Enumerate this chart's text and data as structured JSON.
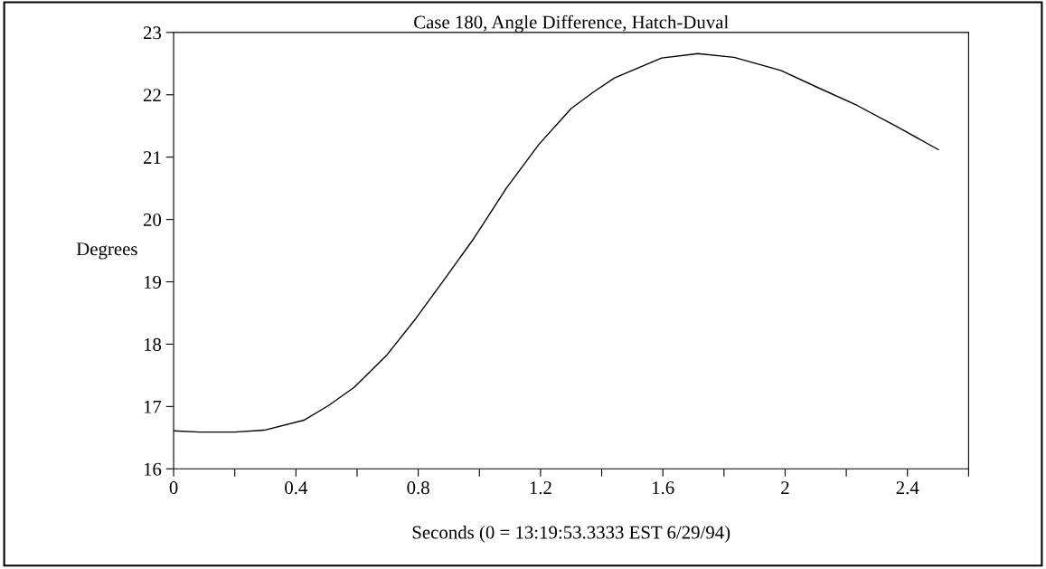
{
  "chart_data": {
    "type": "line",
    "title": "Case 180, Angle Difference, Hatch-Duval",
    "xlabel": "Seconds (0 = 13:19:53.3333 EST 6/29/94)",
    "ylabel": "Degrees",
    "x": [
      0,
      0.083,
      0.2,
      0.296,
      0.426,
      0.508,
      0.591,
      0.698,
      0.792,
      0.887,
      0.981,
      1.088,
      1.194,
      1.3,
      1.372,
      1.442,
      1.596,
      1.714,
      1.833,
      1.986,
      2.105,
      2.235,
      2.365,
      2.501
    ],
    "series": [
      {
        "color": "#000000",
        "values": [
          16.61,
          16.59,
          16.59,
          16.62,
          16.78,
          17.02,
          17.31,
          17.83,
          18.41,
          19.05,
          19.69,
          20.5,
          21.2,
          21.78,
          22.04,
          22.27,
          22.59,
          22.66,
          22.6,
          22.39,
          22.12,
          21.83,
          21.49,
          21.12
        ]
      }
    ],
    "xlim": [
      0,
      2.6
    ],
    "xticks": [
      0,
      {
        "value": 0.2,
        "label": null
      },
      0.4,
      {
        "value": 0.6,
        "label": null
      },
      0.8,
      {
        "value": 1.0,
        "label": null
      },
      1.2,
      {
        "value": 1.4,
        "label": null
      },
      1.6,
      {
        "value": 1.8,
        "label": null
      },
      2,
      {
        "value": 2.2,
        "label": null
      },
      2.4,
      {
        "value": 2.6,
        "label": null
      }
    ],
    "ylim": [
      16,
      23
    ],
    "yticks": [
      16,
      17,
      18,
      19,
      20,
      21,
      22,
      23
    ],
    "grid": false,
    "legend": false,
    "marker": "none",
    "line_style": "solid"
  }
}
